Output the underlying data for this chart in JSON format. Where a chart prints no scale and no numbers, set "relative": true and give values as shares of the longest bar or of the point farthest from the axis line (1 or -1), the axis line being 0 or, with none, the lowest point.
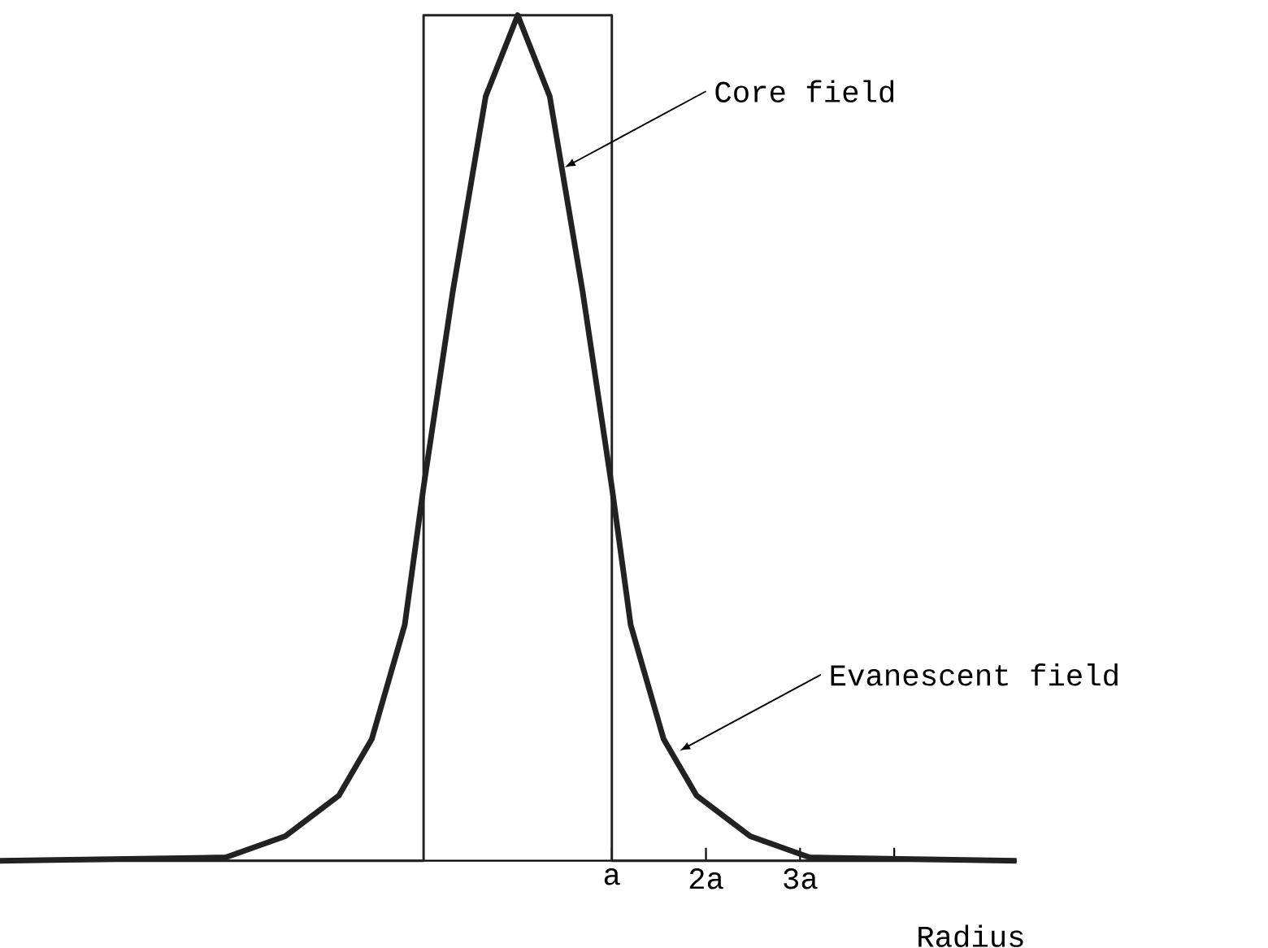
{
  "chart_data": {
    "type": "line",
    "relative": true,
    "xlabel": "Radius",
    "x": [
      -5.5,
      -3.1,
      -2.47,
      -1.9,
      -1.55,
      -1.2,
      -1.0,
      -0.69,
      -0.34,
      0,
      0.34,
      0.69,
      1.0,
      1.2,
      1.55,
      1.9,
      2.47,
      3.1,
      5.3
    ],
    "series": [
      {
        "color": "#222222",
        "values": [
          0,
          0.004,
          0.029,
          0.077,
          0.144,
          0.279,
          0.442,
          0.673,
          0.904,
          1,
          0.904,
          0.673,
          0.442,
          0.279,
          0.144,
          0.077,
          0.029,
          0.004,
          0
        ]
      },
      {
        "color": "#222222",
        "x": [
          -5.5,
          -1,
          -1,
          1,
          1,
          5.3
        ],
        "values": [
          0,
          0,
          1,
          1,
          0,
          0
        ]
      }
    ],
    "xlim": [
      -5.5,
      5.3
    ],
    "xticks": [
      {
        "value": 1,
        "label": "a"
      },
      {
        "value": 2,
        "label": "2a"
      },
      {
        "value": 3,
        "label": "3a"
      },
      {
        "value": 4,
        "label": null
      }
    ],
    "annotations": [
      {
        "text": "Core field",
        "x": 0.5,
        "y": 0.82
      },
      {
        "text": "Evanescent field",
        "x": 1.72,
        "y": 0.13
      }
    ],
    "grid": false,
    "marker": "none",
    "line_style": "solid"
  }
}
